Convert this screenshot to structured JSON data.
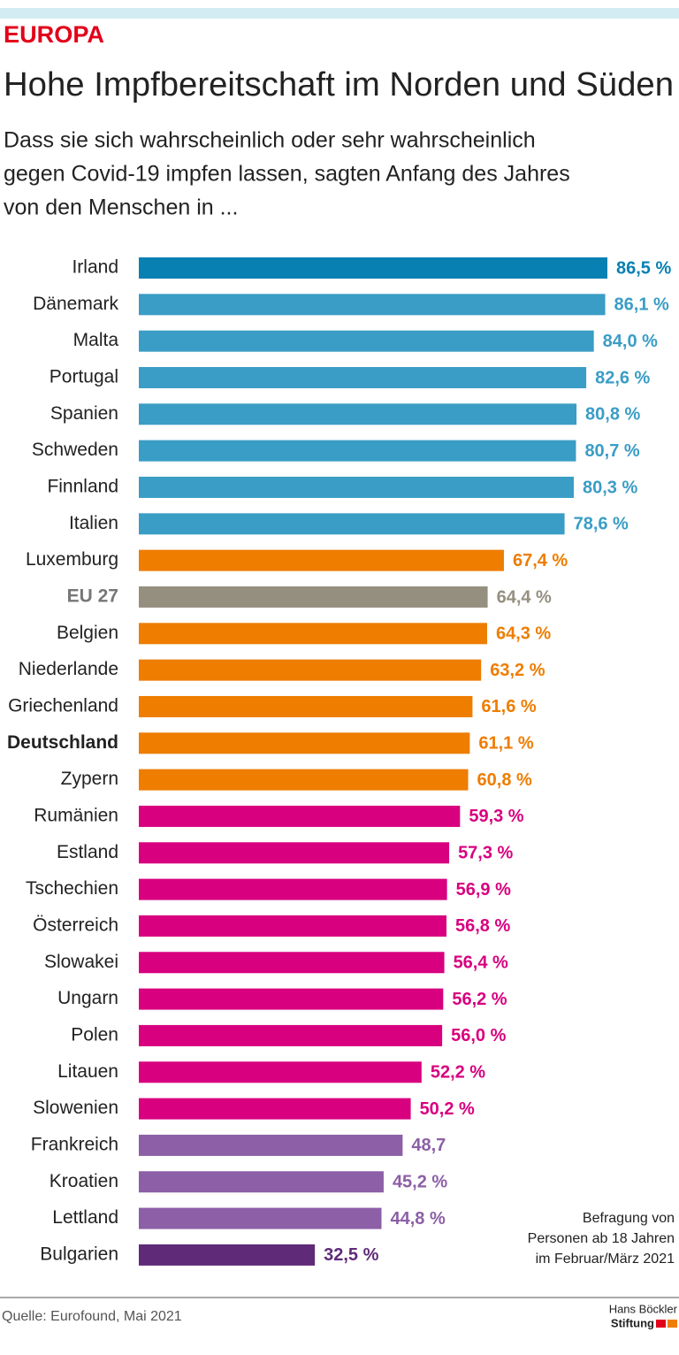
{
  "chart_data": {
    "type": "bar",
    "orientation": "horizontal",
    "kicker": "EUROPA",
    "title": "Hohe Impfbereitschaft im Norden und Süden",
    "subtitle": [
      "Dass sie sich wahrscheinlich oder sehr wahrscheinlich",
      "gegen Covid-19 impfen lassen, sagten Anfang des Jahres",
      "von den Menschen in ..."
    ],
    "categories": [
      "Irland",
      "Dänemark",
      "Malta",
      "Portugal",
      "Spanien",
      "Schweden",
      "Finnland",
      "Italien",
      "Luxemburg",
      "EU 27",
      "Belgien",
      "Niederlande",
      "Griechenland",
      "Deutschland",
      "Zypern",
      "Rumänien",
      "Estland",
      "Tschechien",
      "Österreich",
      "Slowakei",
      "Ungarn",
      "Polen",
      "Litauen",
      "Slowenien",
      "Frankreich",
      "Kroatien",
      "Lettland",
      "Bulgarien"
    ],
    "values": [
      86.5,
      86.1,
      84.0,
      82.6,
      80.8,
      80.7,
      80.3,
      78.6,
      67.4,
      64.4,
      64.3,
      63.2,
      61.6,
      61.1,
      60.8,
      59.3,
      57.3,
      56.9,
      56.8,
      56.4,
      56.2,
      56.0,
      52.2,
      50.2,
      48.7,
      45.2,
      44.8,
      32.5
    ],
    "value_labels": [
      "86,5 %",
      "86,1 %",
      "84,0 %",
      "82,6 %",
      "80,8 %",
      "80,7 %",
      "80,3 %",
      "78,6 %",
      "67,4 %",
      "64,4 %",
      "64,3 %",
      "63,2 %",
      "61,6 %",
      "61,1 %",
      "60,8 %",
      "59,3 %",
      "57,3 %",
      "56,9 %",
      "56,8 %",
      "56,4 %",
      "56,2 %",
      "56,0 %",
      "52,2 %",
      "50,2 %",
      "48,7",
      "45,2 %",
      "44,8 %",
      "32,5 %"
    ],
    "colors": [
      "#0880b2",
      "#3a9dc5",
      "#3a9dc5",
      "#3a9dc5",
      "#3a9dc5",
      "#3a9dc5",
      "#3a9dc5",
      "#3a9dc5",
      "#ee7d00",
      "#958f80",
      "#ee7d00",
      "#ee7d00",
      "#ee7d00",
      "#ee7d00",
      "#ee7d00",
      "#d8007f",
      "#d8007f",
      "#d8007f",
      "#d8007f",
      "#d8007f",
      "#d8007f",
      "#d8007f",
      "#d8007f",
      "#d8007f",
      "#8c5fa6",
      "#8c5fa6",
      "#8c5fa6",
      "#5f2a78"
    ],
    "note": [
      "Befragung von",
      "Personen ab 18 Jahren",
      "im Februar/März 2021"
    ],
    "source": "Quelle: Eurofound, Mai 2021",
    "logo": [
      "Hans Böckler",
      "Stiftung"
    ]
  }
}
